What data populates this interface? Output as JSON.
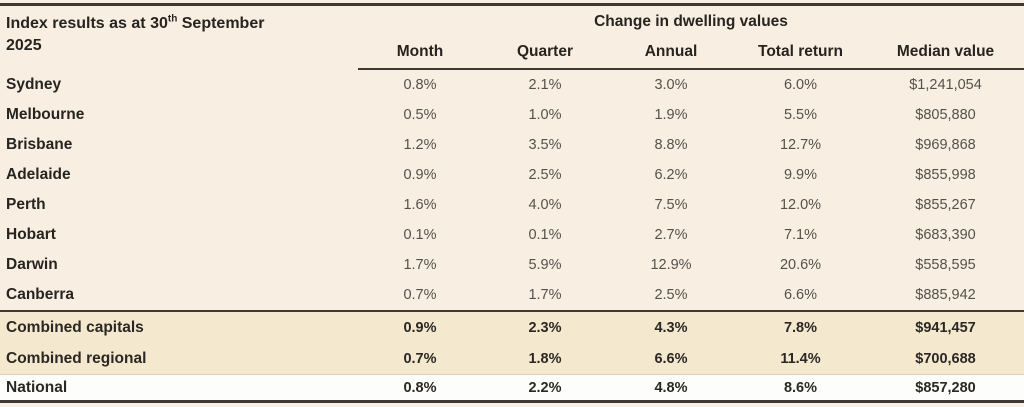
{
  "chart_data": {
    "type": "table",
    "title_line1_prefix": "Index results as at 30",
    "title_superscript": "th",
    "title_line1_suffix": " September",
    "title_line2": "2025",
    "group_header": "Change in dwelling values",
    "columns": [
      "Month",
      "Quarter",
      "Annual",
      "Total return",
      "Median value"
    ],
    "rows": [
      {
        "label": "Sydney",
        "values": [
          "0.8%",
          "2.1%",
          "3.0%",
          "6.0%",
          "$1,241,054"
        ]
      },
      {
        "label": "Melbourne",
        "values": [
          "0.5%",
          "1.0%",
          "1.9%",
          "5.5%",
          "$805,880"
        ]
      },
      {
        "label": "Brisbane",
        "values": [
          "1.2%",
          "3.5%",
          "8.8%",
          "12.7%",
          "$969,868"
        ]
      },
      {
        "label": "Adelaide",
        "values": [
          "0.9%",
          "2.5%",
          "6.2%",
          "9.9%",
          "$855,998"
        ]
      },
      {
        "label": "Perth",
        "values": [
          "1.6%",
          "4.0%",
          "7.5%",
          "12.0%",
          "$855,267"
        ]
      },
      {
        "label": "Hobart",
        "values": [
          "0.1%",
          "0.1%",
          "2.7%",
          "7.1%",
          "$683,390"
        ]
      },
      {
        "label": "Darwin",
        "values": [
          "1.7%",
          "5.9%",
          "12.9%",
          "20.6%",
          "$558,595"
        ]
      },
      {
        "label": "Canberra",
        "values": [
          "0.7%",
          "1.7%",
          "2.5%",
          "6.6%",
          "$885,942"
        ]
      },
      {
        "label": "Combined capitals",
        "values": [
          "0.9%",
          "2.3%",
          "4.3%",
          "7.8%",
          "$941,457"
        ]
      },
      {
        "label": "Combined regional",
        "values": [
          "0.7%",
          "1.8%",
          "6.6%",
          "11.4%",
          "$700,688"
        ]
      },
      {
        "label": "National",
        "values": [
          "0.8%",
          "2.2%",
          "4.8%",
          "8.6%",
          "$857,280"
        ]
      }
    ]
  },
  "colors": {
    "background": "#f8efe2",
    "summary_row_background": "#f4e8cf",
    "national_row_background": "#fdfdfb",
    "rule": "#3e3933",
    "heading_text": "#272420",
    "value_text": "#55504a"
  }
}
